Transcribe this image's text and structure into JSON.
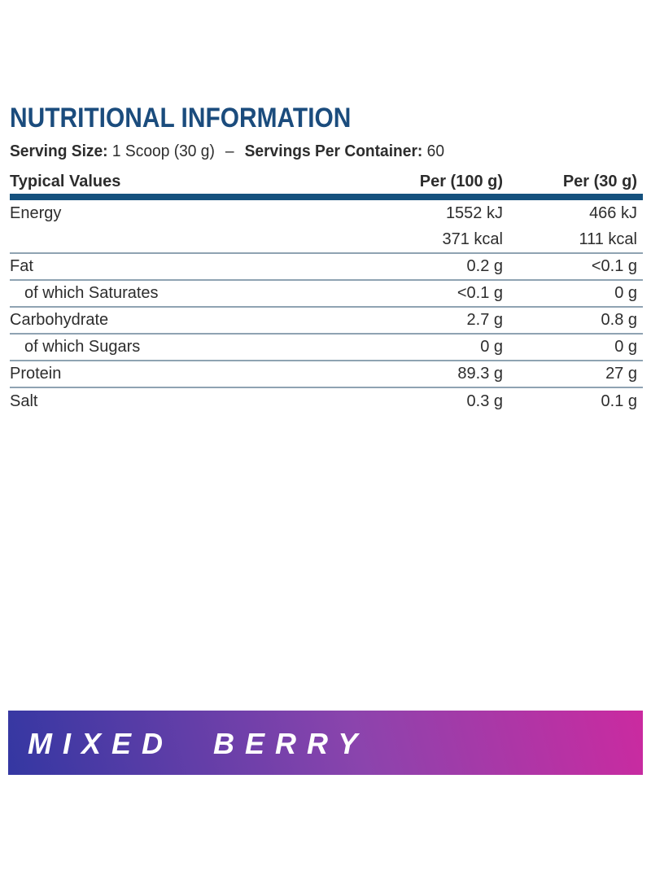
{
  "title": "NUTRITIONAL INFORMATION",
  "serving_line": {
    "serving_size_label": "Serving Size:",
    "serving_size_value": "1 Scoop (30 g)",
    "separator": "–",
    "servings_label": "Servings Per Container:",
    "servings_value": "60"
  },
  "table": {
    "headers": {
      "col1": "Typical Values",
      "col2": "Per (100 g)",
      "col3": "Per (30 g)"
    },
    "rows": [
      {
        "label": "Energy",
        "per100": "1552 kJ",
        "per30": "466 kJ"
      },
      {
        "label": "",
        "per100": "371 kcal",
        "per30": "111 kcal"
      },
      {
        "label": "Fat",
        "per100": "0.2 g",
        "per30": "<0.1 g"
      },
      {
        "label": "of which Saturates",
        "per100": "<0.1 g",
        "per30": "0 g"
      },
      {
        "label": "Carbohydrate",
        "per100": "2.7 g",
        "per30": "0.8 g"
      },
      {
        "label": "of which Sugars",
        "per100": "0 g",
        "per30": "0 g"
      },
      {
        "label": "Protein",
        "per100": "89.3 g",
        "per30": "27 g"
      },
      {
        "label": "Salt",
        "per100": "0.3 g",
        "per30": "0.1 g"
      }
    ]
  },
  "banner": {
    "text": "MIXED BERRY",
    "gradient_from": "#3437a2",
    "gradient_mid": "#8b44ad",
    "gradient_to": "#cb2aa0",
    "text_color": "#ffffff"
  },
  "colors": {
    "accent_blue": "#1b4c7d",
    "divider_bar_blue": "#15517e",
    "rule_gray_blue": "#8fa3b2",
    "body_text": "#2d2d2d"
  }
}
